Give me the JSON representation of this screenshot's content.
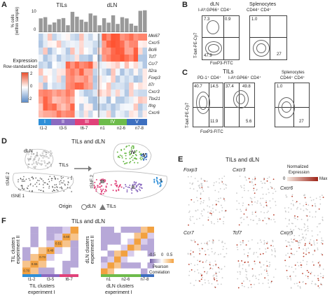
{
  "panels": {
    "A": {
      "letter": "A",
      "tils": "TILs",
      "dln": "dLN",
      "ylabel_line1": "% cells",
      "ylabel_line2": "(within sample)",
      "tick_10": "10",
      "tick_0": "0",
      "genes": [
        "Mki67",
        "Cxcr5",
        "Bcl6",
        "Tcf7",
        "Ccr7",
        "Il2ra",
        "Foxp3",
        "Il7r",
        "Cxcr3",
        "Tbx21",
        "Ifng",
        "Cxcr6"
      ],
      "expr_label1": "Expression",
      "expr_label2": "Row-standardized",
      "scale": [
        "2",
        "0",
        "-2"
      ],
      "clusters": [
        "I",
        "II",
        "III",
        "IV",
        "V"
      ],
      "cluster_colors": [
        "#2f8fd8",
        "#8b6ac0",
        "#e0427a",
        "#6dbb4b",
        "#3d6fbf"
      ],
      "xlabels": [
        "t1-2",
        "t3-5",
        "t6-7",
        "n1",
        "n2-6",
        "n7-8"
      ]
    },
    "B": {
      "letter": "B",
      "group1": "dLN",
      "group1_sub": "I-Aᵇ:GP66⁺ CD4⁺",
      "group2": "Splenocytes",
      "group2_sub": "CD44⁺ CD4⁺",
      "ylab": "T-bet-PE-Cy7",
      "xlab": "FoxP3-FITC",
      "q1": [
        "7.3",
        "0.9",
        "47.9"
      ],
      "q2": [
        "1.0",
        "27"
      ]
    },
    "C": {
      "letter": "C",
      "tils": "TILs",
      "sub1": "PD-1⁺ CD4⁺",
      "sub2": "I-Aᵇ:GP66⁺ CD4⁺",
      "sub3": "Splenocytes",
      "sub3b": "CD44⁺ CD4⁺",
      "ylab": "T-bet-PE-Cy7",
      "xlab": "FoxP3-FITC",
      "vals1": [
        "40.7",
        "14.5",
        "11.9"
      ],
      "vals2": [
        "37.4",
        "49.8",
        "5.6"
      ],
      "vals3": [
        "1.0",
        "27"
      ]
    },
    "D": {
      "letter": "D",
      "title": "TILs and dLN",
      "dln": "dLN",
      "tils": "TILs",
      "tsne2": "tSNE 2",
      "tsne1": "tSNE 1",
      "origin": "Origin",
      "legend_dln": "dLN",
      "legend_tils": "TILs",
      "clusters": [
        "I",
        "II",
        "III",
        "IV",
        "V"
      ]
    },
    "E": {
      "letter": "E",
      "title": "TILs and dLN",
      "genes": [
        "Foxp3",
        "Cxcr3",
        "Cxcr6",
        "Ccr7",
        "Tcf7",
        "Cxcr5"
      ],
      "legend_title1": "Normalized",
      "legend_title2": "Expression",
      "legend_min": "0",
      "legend_max": "Max"
    },
    "F": {
      "letter": "F",
      "title": "TILs and dLN",
      "ylab1_a": "TIL clusters",
      "ylab1_b": "experiment II",
      "ylab2_a": "dLN clusters",
      "ylab2_b": "experiment II",
      "xlab1_a": "TIL clusters",
      "xlab1_b": "experiment I",
      "xlab2_a": "dLN clusters",
      "xlab2_b": "experiment I",
      "xt1": [
        "t1-2",
        "t3-5",
        "t6-7"
      ],
      "xt2": [
        "n1",
        "n2-6",
        "n7-8"
      ],
      "scale_min": "-0.5",
      "scale_zero": "0",
      "scale_max": "0.5",
      "legend1": "Pearson",
      "legend2": "Correlation",
      "cell_vals": [
        "0.70",
        "0.65",
        "0.73",
        "0.49",
        "0.51",
        "0.60"
      ]
    }
  },
  "colors": {
    "high": "#e8502e",
    "low": "#5b8bc6",
    "orange": "#f2a140",
    "purple": "#7560a8"
  }
}
